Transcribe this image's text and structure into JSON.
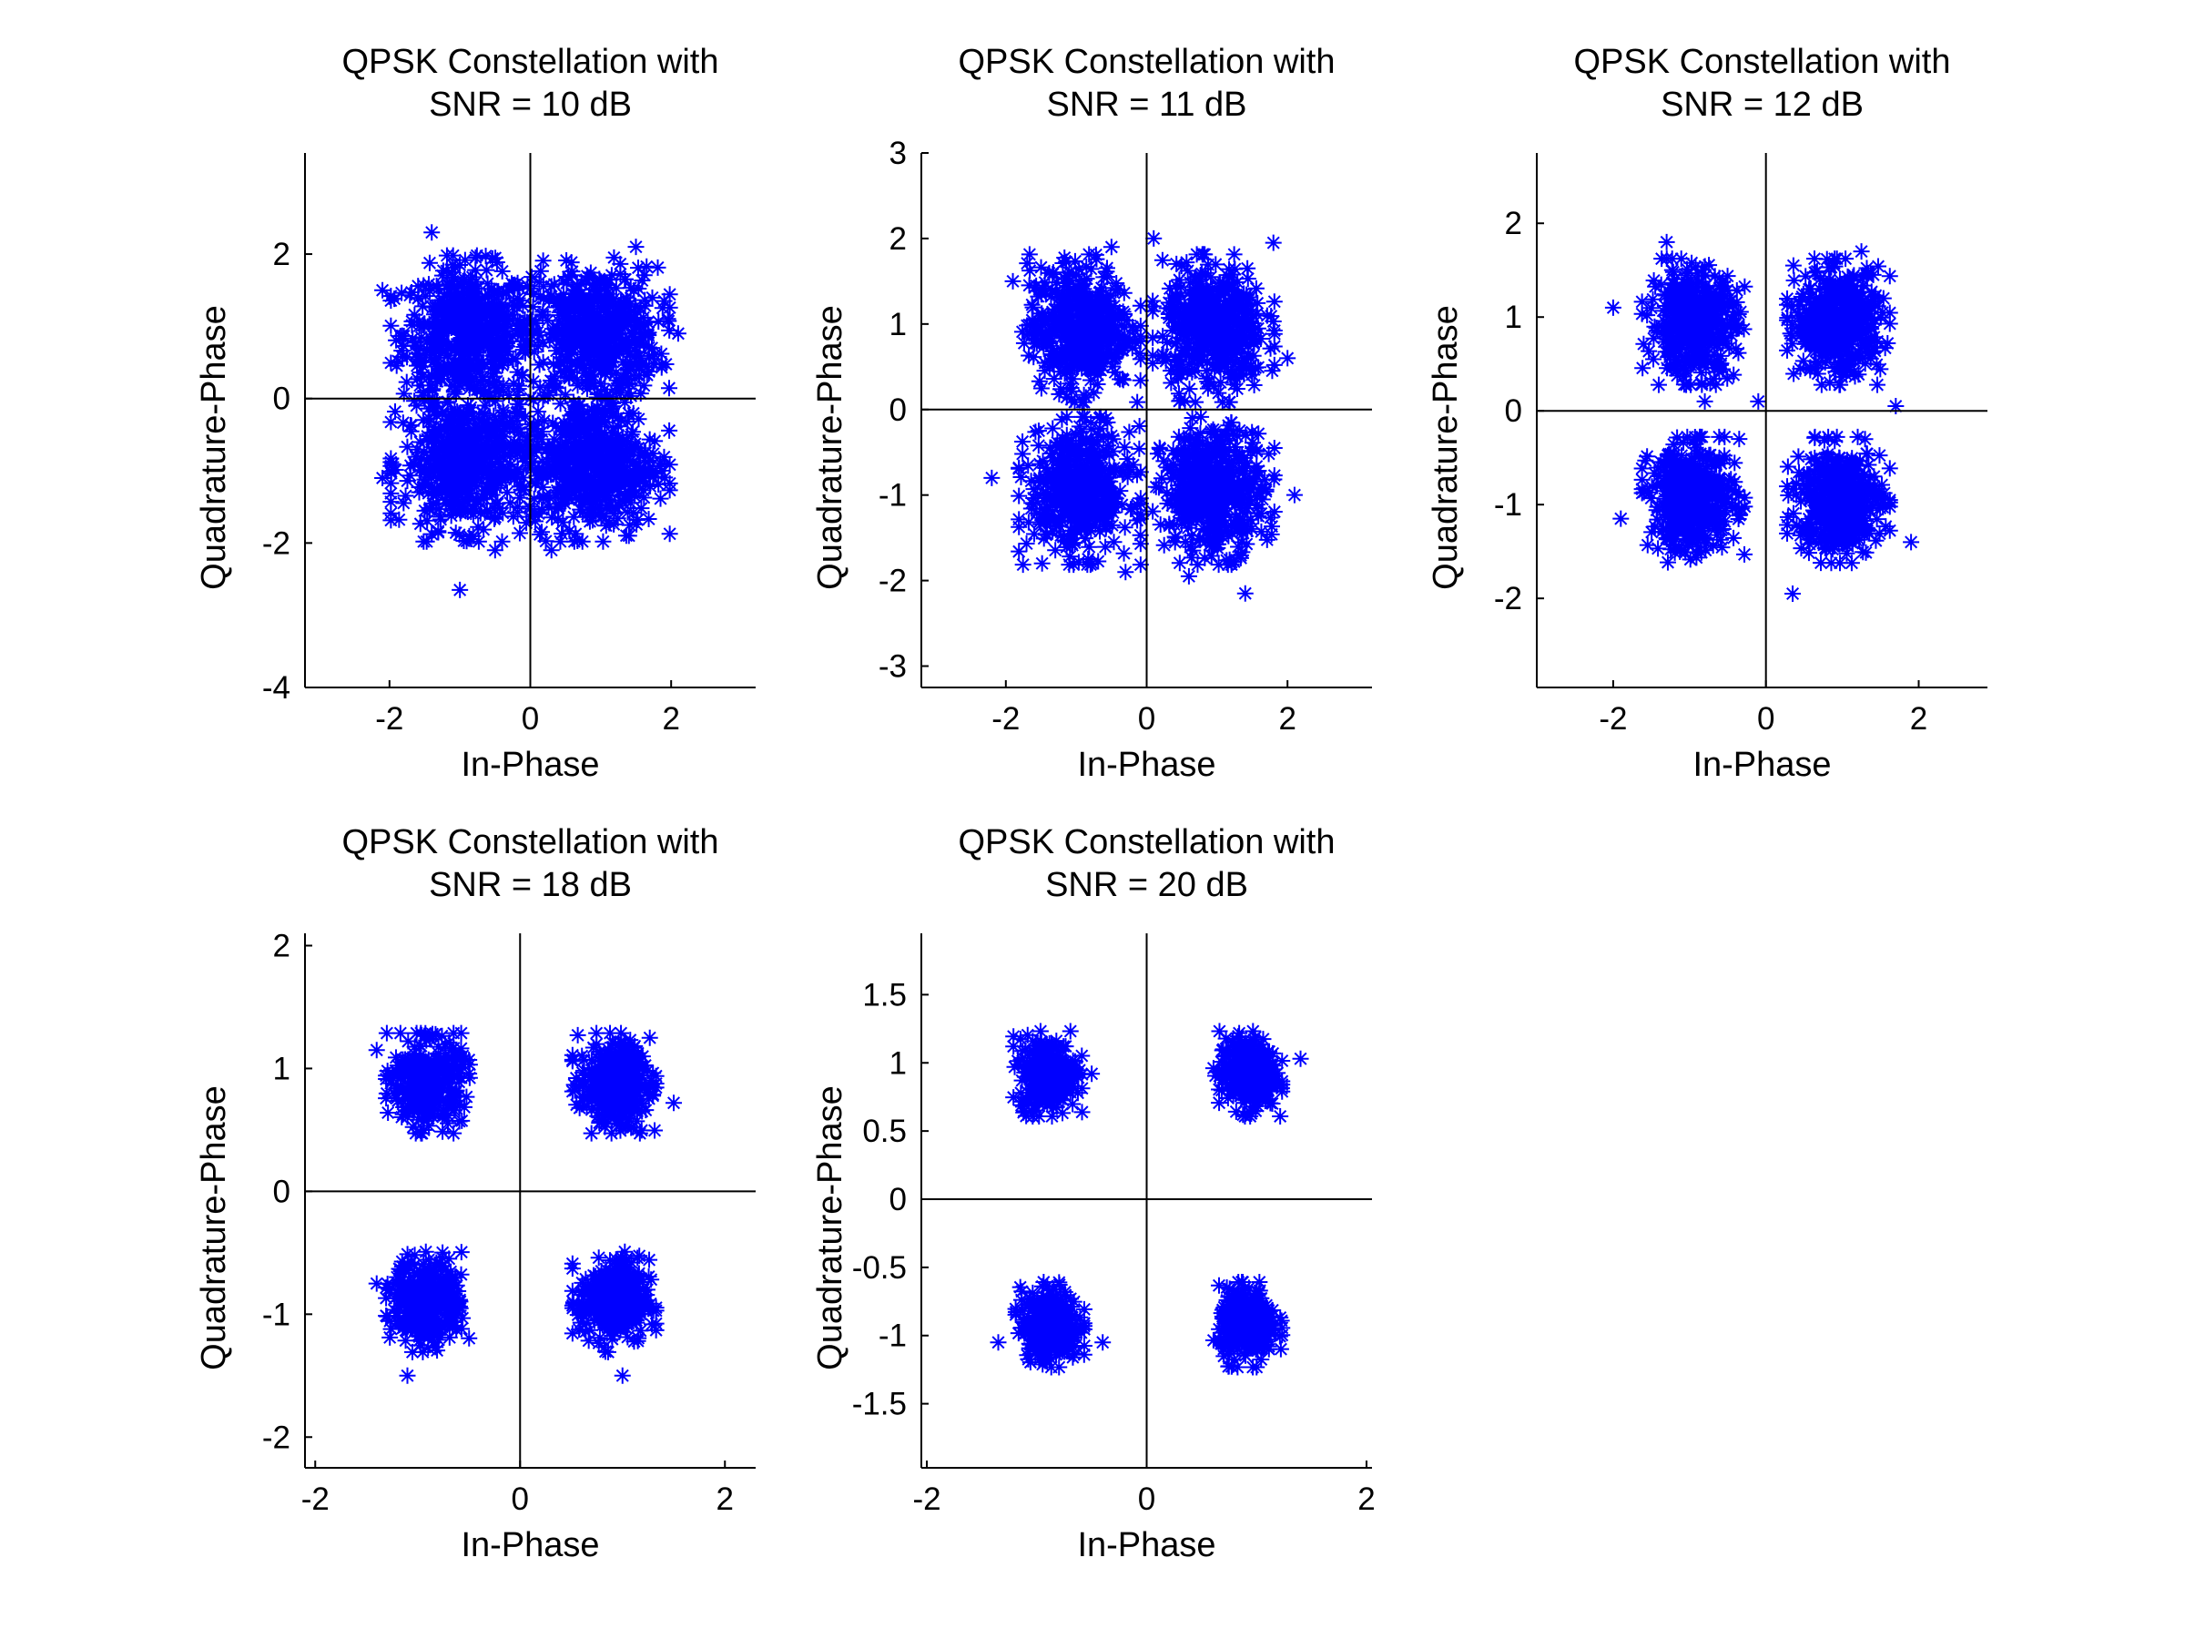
{
  "chart_data": [
    {
      "type": "scatter",
      "title": [
        "QPSK Constellation with",
        "SNR = 10 dB"
      ],
      "xlabel": "In-Phase",
      "ylabel": "Quadrature-Phase",
      "xlim": [
        -3.2,
        3.2
      ],
      "ylim": [
        -4,
        3.4
      ],
      "xticks": [
        -2,
        0,
        2
      ],
      "yticks": [
        -4,
        -2,
        0,
        2
      ],
      "marker": "*",
      "color": "#0000ff",
      "clusters": [
        {
          "center": [
            -0.9,
            0.9
          ],
          "spread": 0.45,
          "n": 520
        },
        {
          "center": [
            0.9,
            0.9
          ],
          "spread": 0.45,
          "n": 520
        },
        {
          "center": [
            -0.9,
            -0.9
          ],
          "spread": 0.45,
          "n": 520
        },
        {
          "center": [
            0.9,
            -0.9
          ],
          "spread": 0.45,
          "n": 520
        }
      ],
      "outliers": [
        [
          -1.4,
          2.3
        ],
        [
          -2.1,
          1.5
        ],
        [
          -1.0,
          -2.65
        ],
        [
          -2.1,
          -1.1
        ],
        [
          1.5,
          2.1
        ],
        [
          2.1,
          0.9
        ],
        [
          -0.5,
          -2.1
        ],
        [
          0.3,
          -2.1
        ],
        [
          1.4,
          -1.9
        ]
      ]
    },
    {
      "type": "scatter",
      "title": [
        "QPSK Constellation with",
        "SNR = 11 dB"
      ],
      "xlabel": "In-Phase",
      "ylabel": "Quadrature-Phase",
      "xlim": [
        -3.2,
        3.2
      ],
      "ylim": [
        -3.25,
        3
      ],
      "xticks": [
        -2,
        0,
        2
      ],
      "yticks": [
        -3,
        -2,
        -1,
        0,
        1,
        2,
        3
      ],
      "marker": "*",
      "color": "#0000ff",
      "clusters": [
        {
          "center": [
            -0.95,
            0.95
          ],
          "spread": 0.36,
          "n": 460
        },
        {
          "center": [
            0.95,
            0.95
          ],
          "spread": 0.36,
          "n": 460
        },
        {
          "center": [
            -0.95,
            -0.95
          ],
          "spread": 0.36,
          "n": 460
        },
        {
          "center": [
            0.95,
            -0.95
          ],
          "spread": 0.36,
          "n": 460
        }
      ],
      "outliers": [
        [
          1.8,
          1.95
        ],
        [
          -2.2,
          -0.8
        ],
        [
          1.4,
          -2.15
        ],
        [
          2.1,
          -1.0
        ],
        [
          0.1,
          2.0
        ],
        [
          -0.5,
          1.9
        ],
        [
          2.0,
          0.6
        ],
        [
          -1.9,
          1.5
        ],
        [
          0.6,
          -1.95
        ],
        [
          -0.3,
          -1.9
        ]
      ]
    },
    {
      "type": "scatter",
      "title": [
        "QPSK Constellation with",
        "SNR = 12 dB"
      ],
      "xlabel": "In-Phase",
      "ylabel": "Quadrature-Phase",
      "xlim": [
        -3,
        2.9
      ],
      "ylim": [
        -2.95,
        2.75
      ],
      "xticks": [
        -2,
        0,
        2
      ],
      "yticks": [
        -2,
        -1,
        0,
        1,
        2
      ],
      "marker": "*",
      "color": "#0000ff",
      "clusters": [
        {
          "center": [
            -0.95,
            0.95
          ],
          "spread": 0.28,
          "n": 420
        },
        {
          "center": [
            0.95,
            0.95
          ],
          "spread": 0.28,
          "n": 420
        },
        {
          "center": [
            -0.95,
            -0.95
          ],
          "spread": 0.28,
          "n": 420
        },
        {
          "center": [
            0.95,
            -0.95
          ],
          "spread": 0.28,
          "n": 420
        }
      ],
      "outliers": [
        [
          -1.9,
          -1.15
        ],
        [
          1.9,
          -1.4
        ],
        [
          0.35,
          -1.95
        ],
        [
          -2.0,
          1.1
        ],
        [
          -1.3,
          1.8
        ],
        [
          1.7,
          0.05
        ],
        [
          -0.8,
          0.1
        ],
        [
          0.45,
          0.45
        ],
        [
          -0.1,
          0.1
        ],
        [
          1.25,
          1.7
        ],
        [
          -0.35,
          -0.3
        ]
      ]
    },
    {
      "type": "scatter",
      "title": [
        "QPSK Constellation with",
        "SNR = 18 dB"
      ],
      "xlabel": "In-Phase",
      "ylabel": "Quadrature-Phase",
      "xlim": [
        -2.1,
        2.3
      ],
      "ylim": [
        -2.25,
        2.1
      ],
      "xticks": [
        -2,
        0,
        2
      ],
      "yticks": [
        -2,
        -1,
        0,
        1,
        2
      ],
      "marker": "*",
      "color": "#0000ff",
      "clusters": [
        {
          "center": [
            -0.9,
            0.88
          ],
          "spread": 0.17,
          "n": 340
        },
        {
          "center": [
            0.92,
            0.88
          ],
          "spread": 0.17,
          "n": 340
        },
        {
          "center": [
            -0.9,
            -0.9
          ],
          "spread": 0.17,
          "n": 340
        },
        {
          "center": [
            0.92,
            -0.9
          ],
          "spread": 0.17,
          "n": 340
        }
      ],
      "outliers": [
        [
          1.5,
          0.72
        ],
        [
          -1.1,
          -1.5
        ],
        [
          -1.4,
          1.15
        ],
        [
          1.0,
          -1.5
        ],
        [
          -1.4,
          -0.75
        ]
      ]
    },
    {
      "type": "scatter",
      "title": [
        "QPSK Constellation with",
        "SNR = 20 dB"
      ],
      "xlabel": "In-Phase",
      "ylabel": "Quadrature-Phase",
      "xlim": [
        -2.05,
        2.05
      ],
      "ylim": [
        -1.97,
        1.95
      ],
      "xticks": [
        -2,
        0,
        2
      ],
      "yticks": [
        -1.5,
        -1,
        -0.5,
        0,
        0.5,
        1,
        1.5
      ],
      "marker": "*",
      "color": "#0000ff",
      "clusters": [
        {
          "center": [
            -0.9,
            0.92
          ],
          "spread": 0.13,
          "n": 300
        },
        {
          "center": [
            0.92,
            0.92
          ],
          "spread": 0.13,
          "n": 300
        },
        {
          "center": [
            -0.88,
            -0.92
          ],
          "spread": 0.13,
          "n": 300
        },
        {
          "center": [
            0.92,
            -0.92
          ],
          "spread": 0.13,
          "n": 300
        }
      ],
      "outliers": [
        [
          1.4,
          1.03
        ],
        [
          -1.35,
          -1.05
        ],
        [
          -0.4,
          -1.05
        ],
        [
          -0.5,
          0.92
        ]
      ]
    }
  ]
}
